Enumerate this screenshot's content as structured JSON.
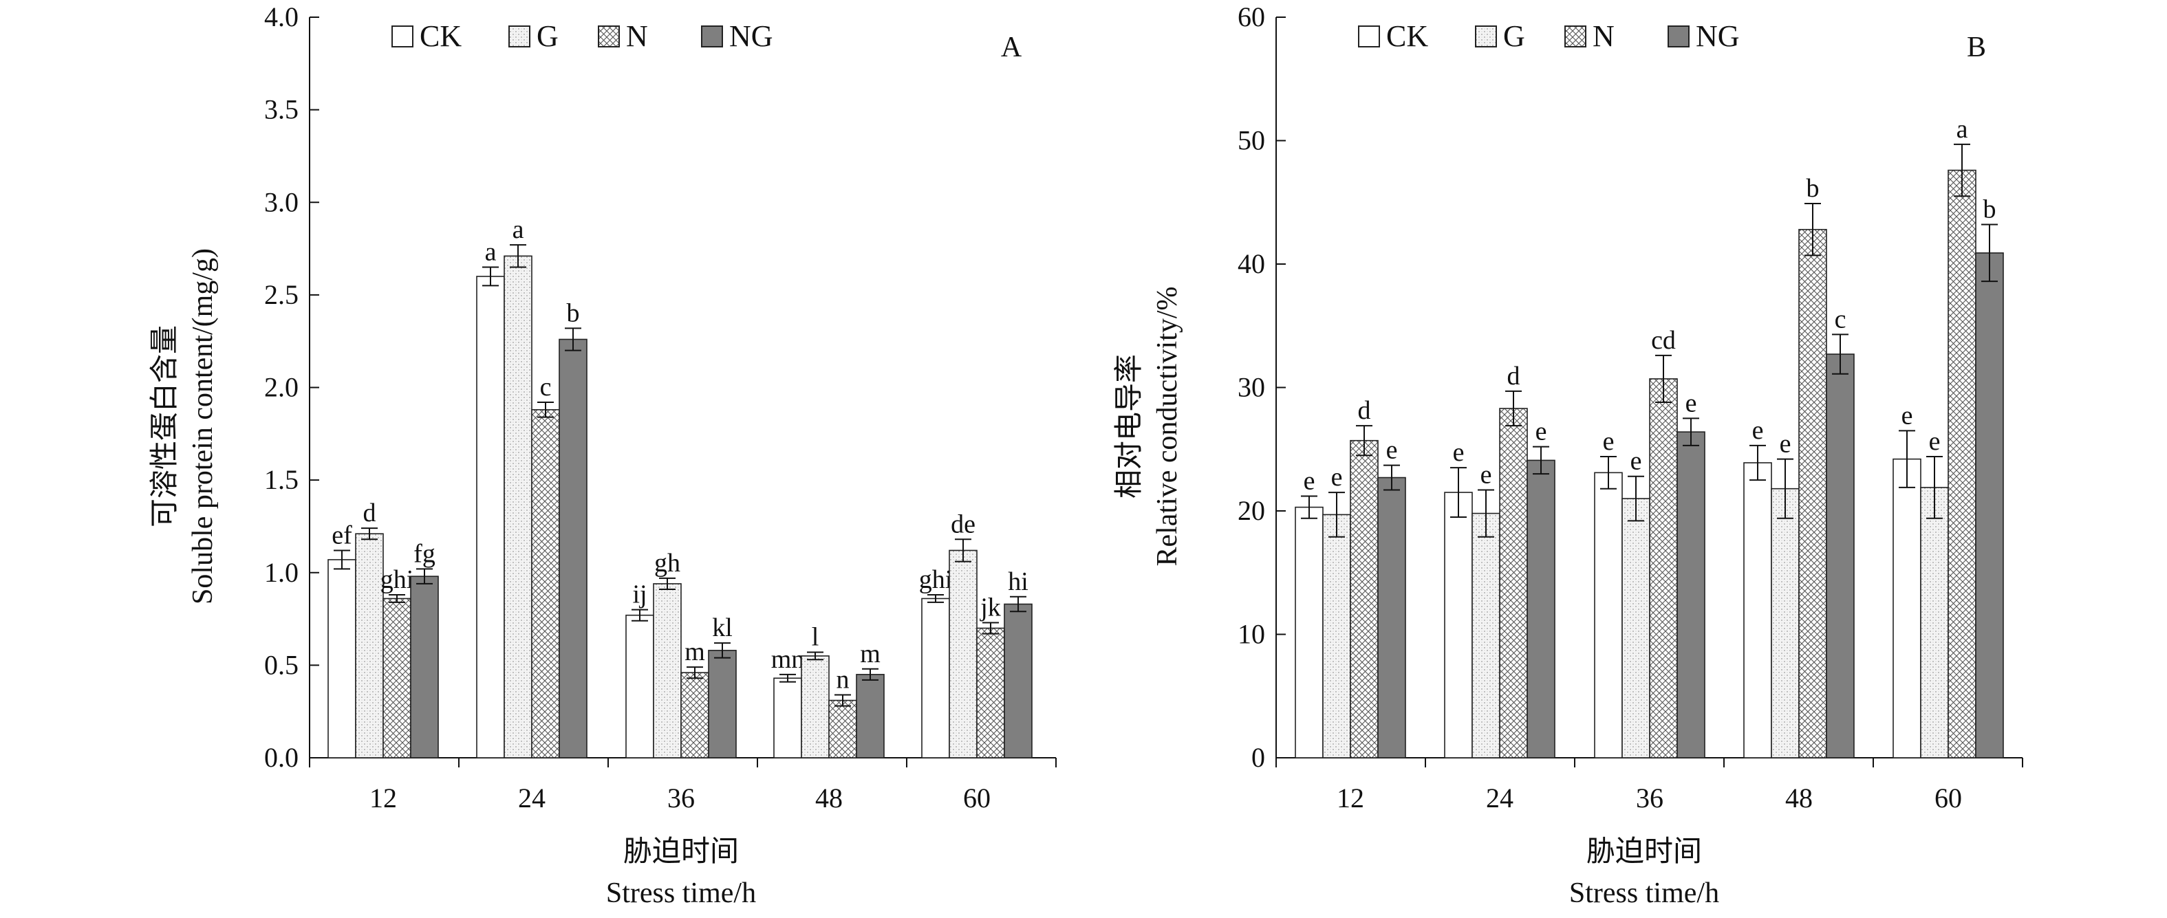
{
  "legend": [
    {
      "key": "CK",
      "label": "CK",
      "pattern": "white"
    },
    {
      "key": "G",
      "label": "G",
      "pattern": "dots"
    },
    {
      "key": "N",
      "label": "N",
      "pattern": "cross"
    },
    {
      "key": "NG",
      "label": "NG",
      "pattern": "gray"
    }
  ],
  "chart_data": [
    {
      "type": "bar",
      "panel": "A",
      "categories": [
        "12",
        "24",
        "36",
        "48",
        "60"
      ],
      "ylim": [
        0,
        4.0
      ],
      "yticks": [
        "0.0",
        "0.5",
        "1.0",
        "1.5",
        "2.0",
        "2.5",
        "3.0",
        "3.5",
        "4.0"
      ],
      "ylabel_cn": "可溶性蛋白含量",
      "ylabel": "Soluble protein content/(mg/g)",
      "xlabel_cn": "胁迫时间",
      "xlabel": "Stress time/h",
      "series": [
        {
          "name": "CK",
          "values": [
            1.07,
            2.6,
            0.77,
            0.43,
            0.86
          ],
          "errors": [
            0.05,
            0.05,
            0.03,
            0.02,
            0.02
          ],
          "letters": [
            "ef",
            "a",
            "ij",
            "mn",
            "ghi"
          ]
        },
        {
          "name": "G",
          "values": [
            1.21,
            2.71,
            0.94,
            0.55,
            1.12
          ],
          "errors": [
            0.03,
            0.06,
            0.03,
            0.02,
            0.06
          ],
          "letters": [
            "d",
            "a",
            "gh",
            "l",
            "de"
          ]
        },
        {
          "name": "N",
          "values": [
            0.86,
            1.88,
            0.46,
            0.31,
            0.7
          ],
          "errors": [
            0.02,
            0.04,
            0.03,
            0.03,
            0.03
          ],
          "letters": [
            "ghi",
            "c",
            "m",
            "n",
            "jk"
          ]
        },
        {
          "name": "NG",
          "values": [
            0.98,
            2.26,
            0.58,
            0.45,
            0.83
          ],
          "errors": [
            0.04,
            0.06,
            0.04,
            0.03,
            0.04
          ],
          "letters": [
            "fg",
            "b",
            "kl",
            "m",
            "hi"
          ]
        }
      ]
    },
    {
      "type": "bar",
      "panel": "B",
      "categories": [
        "12",
        "24",
        "36",
        "48",
        "60"
      ],
      "ylim": [
        0,
        60
      ],
      "yticks": [
        "0",
        "10",
        "20",
        "30",
        "40",
        "50",
        "60"
      ],
      "ylabel_cn": "相对电导率",
      "ylabel": "Relative conductivity/%",
      "xlabel_cn": "胁迫时间",
      "xlabel": "Stress time/h",
      "series": [
        {
          "name": "CK",
          "values": [
            20.3,
            21.5,
            23.1,
            23.9,
            24.2
          ],
          "errors": [
            0.9,
            2.0,
            1.3,
            1.4,
            2.3
          ],
          "letters": [
            "e",
            "e",
            "e",
            "e",
            "e"
          ]
        },
        {
          "name": "G",
          "values": [
            19.7,
            19.8,
            21.0,
            21.8,
            21.9
          ],
          "errors": [
            1.8,
            1.9,
            1.8,
            2.4,
            2.5
          ],
          "letters": [
            "e",
            "e",
            "e",
            "e",
            "e"
          ]
        },
        {
          "name": "N",
          "values": [
            25.7,
            28.3,
            30.7,
            42.8,
            47.6
          ],
          "errors": [
            1.2,
            1.4,
            1.9,
            2.1,
            2.1
          ],
          "letters": [
            "d",
            "d",
            "cd",
            "b",
            "a"
          ]
        },
        {
          "name": "NG",
          "values": [
            22.7,
            24.1,
            26.4,
            32.7,
            40.9
          ],
          "errors": [
            1.0,
            1.1,
            1.1,
            1.6,
            2.3
          ],
          "letters": [
            "e",
            "e",
            "e",
            "c",
            "b"
          ]
        }
      ]
    }
  ]
}
